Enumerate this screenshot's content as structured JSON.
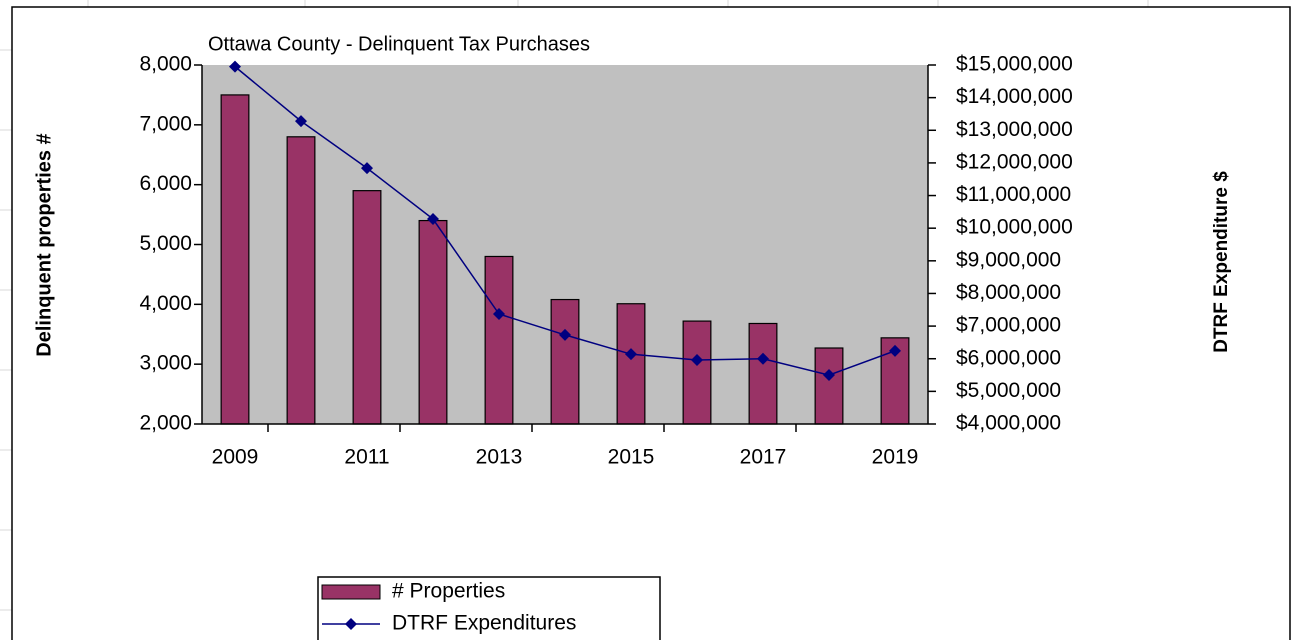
{
  "chart_data": {
    "type": "bar",
    "title": "Ottawa County  -  Delinquent Tax Purchases",
    "y_label": "Delinquent properties #",
    "y2_label": "DTRF Expenditure $",
    "categories": [
      "2009",
      null,
      "2011",
      null,
      "2013",
      null,
      "2015",
      null,
      "2017",
      null,
      "2019"
    ],
    "series": [
      {
        "name": "# Properties",
        "type": "bar",
        "color": "#993366",
        "values": [
          7500,
          6800,
          5900,
          5400,
          4800,
          4080,
          4010,
          3720,
          3680,
          3270,
          3440
        ]
      },
      {
        "name": "DTRF Expenditures",
        "type": "line",
        "axis": "y2",
        "color": "#000080",
        "values": [
          14950000,
          13280000,
          11840000,
          10280000,
          7370000,
          6730000,
          6140000,
          5960000,
          6000000,
          5500000,
          6240000
        ]
      }
    ],
    "ylim": [
      2000,
      8000
    ],
    "yticks": [
      {
        "value": 2000,
        "label": "2,000"
      },
      {
        "value": 3000,
        "label": "3,000"
      },
      {
        "value": 4000,
        "label": "4,000"
      },
      {
        "value": 5000,
        "label": "5,000"
      },
      {
        "value": 6000,
        "label": "6,000"
      },
      {
        "value": 7000,
        "label": "7,000"
      },
      {
        "value": 8000,
        "label": "8,000"
      }
    ],
    "y2lim": [
      4000000,
      15000000
    ],
    "y2ticks": [
      {
        "value": 4000000,
        "label": "$4,000,000"
      },
      {
        "value": 5000000,
        "label": "$5,000,000"
      },
      {
        "value": 6000000,
        "label": "$6,000,000"
      },
      {
        "value": 7000000,
        "label": "$7,000,000"
      },
      {
        "value": 8000000,
        "label": "$8,000,000"
      },
      {
        "value": 9000000,
        "label": "$9,000,000"
      },
      {
        "value": 10000000,
        "label": "$10,000,000"
      },
      {
        "value": 11000000,
        "label": "$11,000,000"
      },
      {
        "value": 12000000,
        "label": "$12,000,000"
      },
      {
        "value": 13000000,
        "label": "$13,000,000"
      },
      {
        "value": 14000000,
        "label": "$14,000,000"
      },
      {
        "value": 15000000,
        "label": "$15,000,000"
      }
    ],
    "grid": false,
    "plot_background": "#c0c0c0",
    "legend": "bottom"
  }
}
